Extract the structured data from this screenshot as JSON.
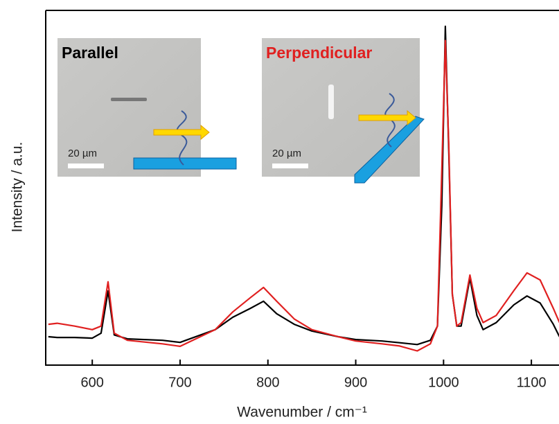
{
  "chart_data": {
    "type": "line",
    "xlabel": "Wavenumber / cm⁻¹",
    "ylabel": "Intensity / a.u.",
    "x": [
      550,
      560,
      580,
      600,
      610,
      618,
      625,
      640,
      680,
      700,
      740,
      760,
      780,
      795,
      810,
      830,
      850,
      880,
      900,
      930,
      950,
      970,
      985,
      993,
      998,
      1002,
      1006,
      1010,
      1015,
      1020,
      1030,
      1038,
      1045,
      1060,
      1080,
      1095,
      1110,
      1125,
      1132
    ],
    "series": [
      {
        "color": "#000000",
        "values": [
          8,
          7.8,
          7.8,
          7.6,
          9,
          20.9,
          8.5,
          7.4,
          7,
          6.4,
          10,
          13.5,
          16,
          18,
          14.5,
          11.5,
          9.6,
          8,
          7.2,
          6.8,
          6.3,
          5.8,
          7,
          11,
          45,
          95.5,
          60,
          20,
          11,
          11,
          24.5,
          14,
          10,
          12,
          17,
          19.5,
          17.5,
          11.5,
          8
        ]
      },
      {
        "color": "#e02020",
        "values": [
          11.5,
          11.8,
          11,
          10,
          11,
          23.5,
          9,
          7,
          6,
          5.3,
          10,
          15,
          19,
          21.9,
          18,
          13,
          10,
          8,
          6.8,
          6,
          5.4,
          4,
          6,
          11,
          55,
          91.5,
          62,
          20,
          11,
          12,
          25.4,
          16,
          12,
          14,
          21,
          26,
          24,
          16,
          12
        ]
      }
    ],
    "xlim": [
      547,
      1132
    ],
    "ylim": [
      0,
      100
    ],
    "xticks": [
      600,
      700,
      800,
      900,
      1000,
      1100
    ],
    "insets": [
      {
        "label": "Parallel",
        "label_color": "#000000",
        "scale_label": "20 µm"
      },
      {
        "label": "Perpendicular",
        "label_color": "#e02020",
        "scale_label": "20 µm"
      }
    ]
  }
}
